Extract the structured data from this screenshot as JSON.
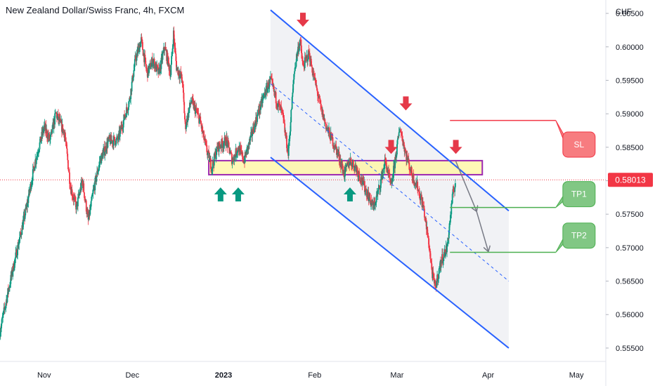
{
  "chart_data": {
    "type": "candlestick",
    "title": "New Zealand Dollar/Swiss Franc, 4h, FXCM",
    "currency": "CHF",
    "y_ticks": [
      "0.60500",
      "0.60000",
      "0.59500",
      "0.59000",
      "0.58500",
      "0.58000",
      "0.57500",
      "0.57000",
      "0.56500",
      "0.56000",
      "0.55500"
    ],
    "y_tick_values": [
      0.605,
      0.6,
      0.595,
      0.59,
      0.585,
      0.58,
      0.575,
      0.57,
      0.565,
      0.56,
      0.555
    ],
    "ylim": [
      0.553,
      0.607
    ],
    "x_ticks": [
      {
        "label": "Nov",
        "date": "2022-11-01"
      },
      {
        "label": "Dec",
        "date": "2022-12-01"
      },
      {
        "label": "2023",
        "date": "2023-01-01",
        "bold": true
      },
      {
        "label": "Feb",
        "date": "2023-02-01"
      },
      {
        "label": "Mar",
        "date": "2023-03-01"
      },
      {
        "label": "Apr",
        "date": "2023-04-01"
      },
      {
        "label": "May",
        "date": "2023-05-01"
      }
    ],
    "xlim": [
      "2022-10-17",
      "2023-05-11"
    ],
    "current_price": "0.58013",
    "current_price_value": 0.58013,
    "price_path": [
      [
        "2022-10-17",
        0.5575
      ],
      [
        "2022-10-20",
        0.564
      ],
      [
        "2022-10-23",
        0.57
      ],
      [
        "2022-10-26",
        0.576
      ],
      [
        "2022-10-29",
        0.583
      ],
      [
        "2022-11-01",
        0.588
      ],
      [
        "2022-11-03",
        0.586
      ],
      [
        "2022-11-05",
        0.59
      ],
      [
        "2022-11-08",
        0.587
      ],
      [
        "2022-11-10",
        0.579
      ],
      [
        "2022-11-12",
        0.576
      ],
      [
        "2022-11-14",
        0.58
      ],
      [
        "2022-11-16",
        0.574
      ],
      [
        "2022-11-18",
        0.579
      ],
      [
        "2022-11-20",
        0.583
      ],
      [
        "2022-11-23",
        0.586
      ],
      [
        "2022-11-26",
        0.586
      ],
      [
        "2022-11-28",
        0.589
      ],
      [
        "2022-11-30",
        0.592
      ],
      [
        "2022-12-02",
        0.598
      ],
      [
        "2022-12-04",
        0.601
      ],
      [
        "2022-12-06",
        0.596
      ],
      [
        "2022-12-08",
        0.598
      ],
      [
        "2022-12-10",
        0.596
      ],
      [
        "2022-12-12",
        0.6
      ],
      [
        "2022-12-14",
        0.596
      ],
      [
        "2022-12-15",
        0.602
      ],
      [
        "2022-12-16",
        0.597
      ],
      [
        "2022-12-18",
        0.595
      ],
      [
        "2022-12-19",
        0.588
      ],
      [
        "2022-12-21",
        0.592
      ],
      [
        "2022-12-22",
        0.591
      ],
      [
        "2022-12-24",
        0.589
      ],
      [
        "2022-12-26",
        0.585
      ],
      [
        "2022-12-28",
        0.582
      ],
      [
        "2022-12-30",
        0.585
      ],
      [
        "2023-01-02",
        0.586
      ],
      [
        "2023-01-04",
        0.583
      ],
      [
        "2023-01-06",
        0.585
      ],
      [
        "2023-01-08",
        0.583
      ],
      [
        "2023-01-10",
        0.586
      ],
      [
        "2023-01-12",
        0.589
      ],
      [
        "2023-01-15",
        0.593
      ],
      [
        "2023-01-17",
        0.595
      ],
      [
        "2023-01-19",
        0.592
      ],
      [
        "2023-01-21",
        0.59
      ],
      [
        "2023-01-23",
        0.584
      ],
      [
        "2023-01-24",
        0.59
      ],
      [
        "2023-01-25",
        0.596
      ],
      [
        "2023-01-26",
        0.599
      ],
      [
        "2023-01-27",
        0.601
      ],
      [
        "2023-01-28",
        0.597
      ],
      [
        "2023-01-30",
        0.599
      ],
      [
        "2023-02-01",
        0.595
      ],
      [
        "2023-02-03",
        0.591
      ],
      [
        "2023-02-05",
        0.588
      ],
      [
        "2023-02-07",
        0.586
      ],
      [
        "2023-02-09",
        0.584
      ],
      [
        "2023-02-11",
        0.581
      ],
      [
        "2023-02-13",
        0.583
      ],
      [
        "2023-02-15",
        0.582
      ],
      [
        "2023-02-17",
        0.58
      ],
      [
        "2023-02-19",
        0.578
      ],
      [
        "2023-02-21",
        0.576
      ],
      [
        "2023-02-23",
        0.579
      ],
      [
        "2023-02-25",
        0.583
      ],
      [
        "2023-02-27",
        0.579
      ],
      [
        "2023-03-01",
        0.585
      ],
      [
        "2023-03-02",
        0.588
      ],
      [
        "2023-03-04",
        0.584
      ],
      [
        "2023-03-06",
        0.581
      ],
      [
        "2023-03-08",
        0.579
      ],
      [
        "2023-03-10",
        0.576
      ],
      [
        "2023-03-12",
        0.57
      ],
      [
        "2023-03-13",
        0.566
      ],
      [
        "2023-03-14",
        0.564
      ],
      [
        "2023-03-16",
        0.568
      ],
      [
        "2023-03-18",
        0.57
      ],
      [
        "2023-03-19",
        0.574
      ],
      [
        "2023-03-20",
        0.578
      ],
      [
        "2023-03-21",
        0.5801
      ]
    ],
    "channel_upper": [
      [
        "2023-01-17",
        0.6055
      ],
      [
        "2023-04-08",
        0.5755
      ]
    ],
    "channel_mid": [
      [
        "2023-01-17",
        0.5945
      ],
      [
        "2023-04-08",
        0.565
      ]
    ],
    "channel_lower": [
      [
        "2023-01-17",
        0.5835
      ],
      [
        "2023-04-08",
        0.555
      ]
    ],
    "support_zone": {
      "from": "2022-12-27",
      "to": "2023-03-30",
      "low": 0.5809,
      "high": 0.583
    },
    "down_arrows": [
      {
        "date": "2023-01-28",
        "price": 0.603
      },
      {
        "date": "2023-02-27",
        "price": 0.584
      },
      {
        "date": "2023-03-04",
        "price": 0.5905
      },
      {
        "date": "2023-03-21",
        "price": 0.584
      }
    ],
    "up_arrows": [
      {
        "date": "2022-12-31",
        "price": 0.579
      },
      {
        "date": "2023-01-06",
        "price": 0.579
      },
      {
        "date": "2023-02-13",
        "price": 0.579
      }
    ],
    "projection": [
      [
        "2023-03-21",
        0.5829
      ],
      [
        "2023-03-28",
        0.5755
      ],
      [
        "2023-04-01",
        0.5695
      ]
    ],
    "levels": [
      {
        "label": "SL",
        "price": 0.589,
        "from": "2023-03-19",
        "to": "2023-04-24",
        "color": "#f23645",
        "box_fill": "#f77c80",
        "box_price": 0.5854
      },
      {
        "label": "TP1",
        "price": 0.576,
        "from": "2023-03-19",
        "to": "2023-04-24",
        "color": "#4caf50",
        "box_fill": "#81c784",
        "box_price": 0.578
      },
      {
        "label": "TP2",
        "price": 0.5693,
        "from": "2023-03-19",
        "to": "2023-04-24",
        "color": "#4caf50",
        "box_fill": "#81c784",
        "box_price": 0.5718
      }
    ]
  }
}
